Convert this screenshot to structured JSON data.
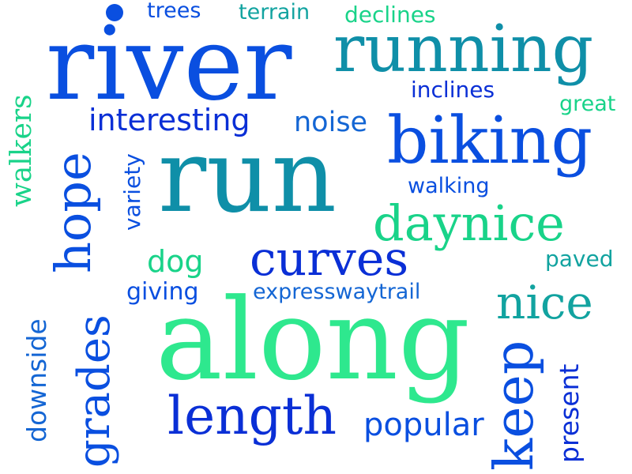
{
  "words": {
    "river": "river",
    "running": "running",
    "trees": "trees",
    "terrain": "terrain",
    "declines": "declines",
    "inclines": "inclines",
    "great": "great",
    "interesting": "interesting",
    "noise": "noise",
    "biking": "biking",
    "walkers": "walkers",
    "hope": "hope",
    "variety": "variety",
    "run": "run",
    "walking": "walking",
    "daynice": "daynice",
    "dog": "dog",
    "curves": "curves",
    "paved": "paved",
    "giving": "giving",
    "expresswaytrail": "expresswaytrail",
    "nice": "nice",
    "downside": "downside",
    "grades": "grades",
    "along": "along",
    "keep": "keep",
    "present": "present",
    "length": "length",
    "popular": "popular"
  },
  "colors": {
    "blue_dark": "#0a2fd6",
    "blue": "#0a4fe0",
    "blue_mid": "#1466d4",
    "teal": "#0f8fa8",
    "teal_light": "#12a3a0",
    "green": "#19d389",
    "green_light": "#2ee88e"
  }
}
